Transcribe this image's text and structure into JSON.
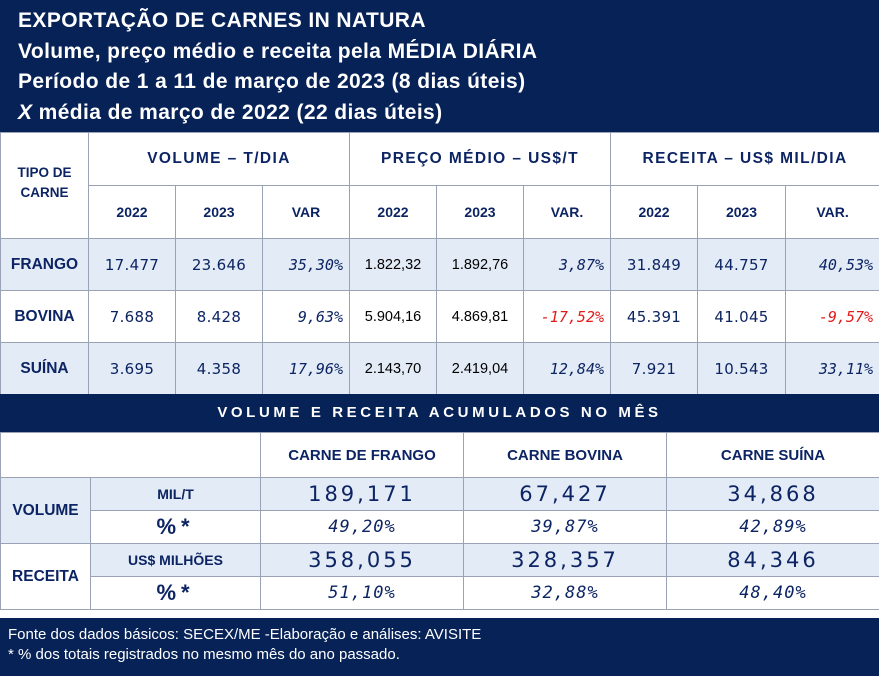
{
  "header": {
    "line1": "EXPORTAÇÃO DE CARNES IN NATURA",
    "line2": "Volume, preço médio e receita pela MÉDIA DIÁRIA",
    "line3": "Período de 1 a 11 de março de 2023 (8 dias úteis)",
    "line4_mark": "X",
    "line4_rest": " média de março de 2022 (22 dias úteis)"
  },
  "table1": {
    "tipo_label": "TIPO DE CARNE",
    "groups": [
      "VOLUME – T/DIA",
      "PREÇO MÉDIO – US$/T",
      "RECEITA – US$ MIL/DIA"
    ],
    "years": [
      "2022",
      "2023",
      "VAR",
      "2022",
      "2023",
      "VAR.",
      "2022",
      "2023",
      "VAR."
    ],
    "rows": [
      {
        "label": "FRANGO",
        "vol_2022": "17.477",
        "vol_2023": "23.646",
        "vol_var": "35,30%",
        "preco_2022": "1.822,32",
        "preco_2023": "1.892,76",
        "preco_var": "3,87%",
        "rec_2022": "31.849",
        "rec_2023": "44.757",
        "rec_var": "40,53%"
      },
      {
        "label": "BOVINA",
        "vol_2022": "7.688",
        "vol_2023": "8.428",
        "vol_var": "9,63%",
        "preco_2022": "5.904,16",
        "preco_2023": "4.869,81",
        "preco_var": "-17,52%",
        "rec_2022": "45.391",
        "rec_2023": "41.045",
        "rec_var": "-9,57%"
      },
      {
        "label": "SUÍNA",
        "vol_2022": "3.695",
        "vol_2023": "4.358",
        "vol_var": "17,96%",
        "preco_2022": "2.143,70",
        "preco_2023": "2.419,04",
        "preco_var": "12,84%",
        "rec_2022": "7.921",
        "rec_2023": "10.543",
        "rec_var": "33,11%"
      }
    ]
  },
  "band": "VOLUME E RECEITA ACUMULADOS NO MÊS",
  "table2": {
    "columns": [
      "CARNE DE FRANGO",
      "CARNE BOVINA",
      "CARNE SUÍNA"
    ],
    "volume": {
      "label": "VOLUME",
      "unit_label": "MIL/T",
      "values": [
        "189,171",
        "67,427",
        "34,868"
      ],
      "pct_label": "%*",
      "pct_values": [
        "49,20%",
        "39,87%",
        "42,89%"
      ]
    },
    "receita": {
      "label": "RECEITA",
      "unit_label": "US$ MILHÕES",
      "values": [
        "358,055",
        "328,357",
        "84,346"
      ],
      "pct_label": "%*",
      "pct_values": [
        "51,10%",
        "32,88%",
        "48,40%"
      ]
    }
  },
  "footer": {
    "line1": "Fonte dos dados básicos: SECEX/ME -Elaboração e análises: AVISITE",
    "line2": "* % dos totais registrados no mesmo mês do ano passado."
  },
  "colors": {
    "navy": "#062257",
    "text_blue": "#0c2463",
    "negative_red": "#e21b1b",
    "row_shade": "#e3ebf6"
  }
}
